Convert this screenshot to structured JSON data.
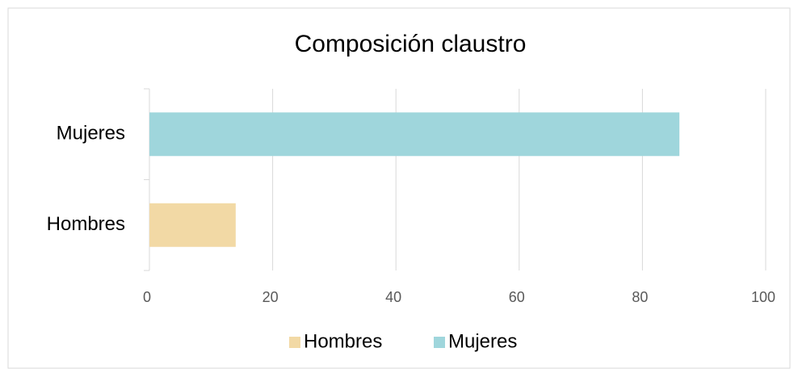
{
  "chart_data": {
    "type": "bar",
    "orientation": "horizontal",
    "title": "Composición claustro",
    "categories": [
      "Hombres",
      "Mujeres"
    ],
    "series": [
      {
        "name": "Hombres",
        "color": "#f2d9a5",
        "values": [
          14,
          null
        ]
      },
      {
        "name": "Mujeres",
        "color": "#9fd6dc",
        "values": [
          null,
          86
        ]
      }
    ],
    "xlim": [
      0,
      100
    ],
    "xticks": [
      0,
      20,
      40,
      60,
      80,
      100
    ],
    "grid": true,
    "legend": "bottom"
  }
}
